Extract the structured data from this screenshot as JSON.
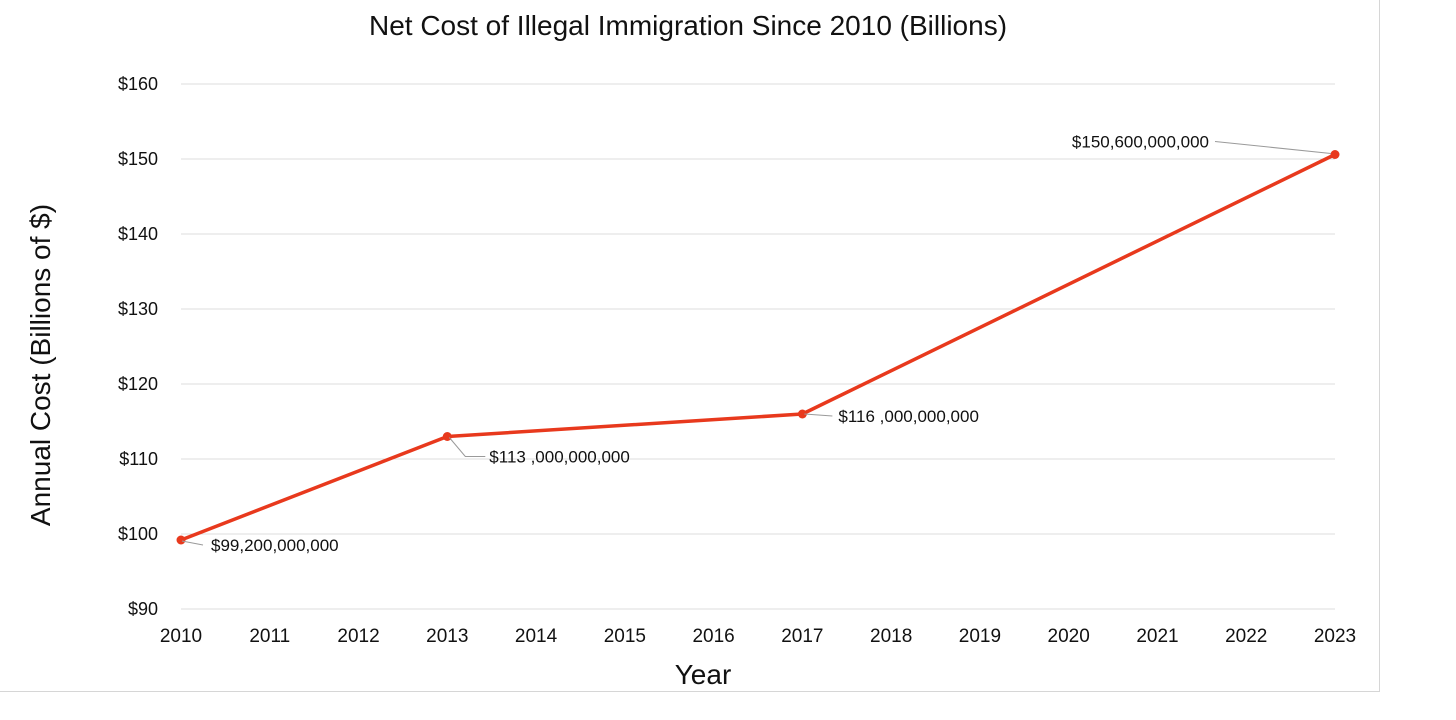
{
  "chart_data": {
    "type": "line",
    "title": "Net Cost of Illegal Immigration Since 2010 (Billions)",
    "xlabel": "Year",
    "ylabel": "Annual Cost (Billions of $)",
    "categories": [
      "2010",
      "2011",
      "2012",
      "2013",
      "2014",
      "2015",
      "2016",
      "2017",
      "2018",
      "2019",
      "2020",
      "2021",
      "2022",
      "2023"
    ],
    "ylim": [
      90,
      160
    ],
    "yticks": [
      90,
      100,
      110,
      120,
      130,
      140,
      150,
      160
    ],
    "ytick_labels": [
      "$90",
      "$100",
      "$110",
      "$120",
      "$130",
      "$140",
      "$150",
      "$160"
    ],
    "grid": true,
    "legend": "none",
    "series": [
      {
        "color": "#e8391d",
        "points": [
          {
            "x": "2010",
            "y": 99.2,
            "label": "$99,200,000,000"
          },
          {
            "x": "2013",
            "y": 113.0,
            "label": "$113 ,000,000,000"
          },
          {
            "x": "2017",
            "y": 116.0,
            "label": "$116 ,000,000,000"
          },
          {
            "x": "2023",
            "y": 150.6,
            "label": "$150,600,000,000"
          }
        ]
      }
    ]
  }
}
